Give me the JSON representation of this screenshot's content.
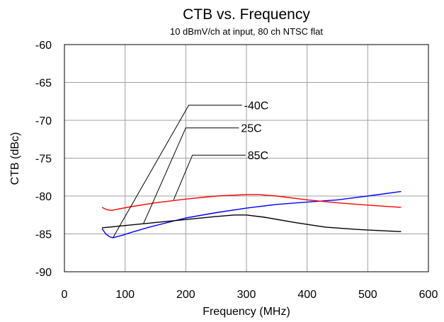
{
  "chart_data": {
    "type": "line",
    "title": "CTB vs. Frequency",
    "subtitle": "10 dBmV/ch at input, 80 ch NTSC flat",
    "xlabel": "Frequency (MHz)",
    "ylabel": "CTB (dBc)",
    "xlim": [
      0,
      600
    ],
    "ylim": [
      -90,
      -60
    ],
    "xticks": [
      0,
      100,
      200,
      300,
      400,
      500,
      600
    ],
    "yticks": [
      -60,
      -65,
      -70,
      -75,
      -80,
      -85,
      -90
    ],
    "grid": true,
    "legend": "none",
    "series": [
      {
        "name": "-40C",
        "color": "#0000ff",
        "x": [
          62,
          68,
          75,
          80,
          85,
          95,
          110,
          140,
          200,
          250,
          300,
          350,
          400,
          450,
          500,
          555
        ],
        "y": [
          -84.3,
          -85.0,
          -85.4,
          -85.5,
          -85.4,
          -85.2,
          -84.8,
          -84.1,
          -82.9,
          -82.2,
          -81.6,
          -81.1,
          -80.8,
          -80.5,
          -80.0,
          -79.4
        ]
      },
      {
        "name": "25C",
        "color": "#000000",
        "x": [
          62,
          100,
          150,
          200,
          250,
          280,
          300,
          330,
          380,
          430,
          480,
          555
        ],
        "y": [
          -84.2,
          -83.9,
          -83.5,
          -83.1,
          -82.7,
          -82.5,
          -82.5,
          -82.8,
          -83.5,
          -84.1,
          -84.4,
          -84.7
        ]
      },
      {
        "name": "85C",
        "color": "#ff0000",
        "x": [
          62,
          70,
          78,
          90,
          110,
          150,
          200,
          250,
          300,
          320,
          350,
          400,
          450,
          500,
          555
        ],
        "y": [
          -81.5,
          -81.8,
          -81.9,
          -81.7,
          -81.4,
          -80.9,
          -80.4,
          -80.0,
          -79.8,
          -79.8,
          -80.0,
          -80.5,
          -80.9,
          -81.2,
          -81.5
        ]
      }
    ],
    "annotations": [
      {
        "text": "-40C",
        "label_x": 205,
        "label_y": -68.0,
        "target_x": 80,
        "target_y": -85.5
      },
      {
        "text": "25C",
        "label_x": 200,
        "label_y": -71.0,
        "target_x": 130,
        "target_y": -83.7
      },
      {
        "text": "85C",
        "label_x": 211,
        "label_y": -74.6,
        "target_x": 180,
        "target_y": -80.5
      }
    ]
  }
}
